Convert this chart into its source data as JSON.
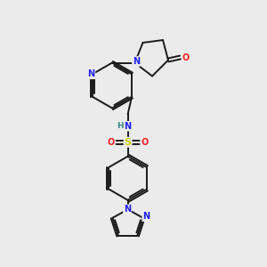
{
  "background_color": "#ebebeb",
  "bond_color": "#1a1a1a",
  "atom_colors": {
    "N": "#2020ff",
    "O": "#ff2020",
    "S": "#cccc00",
    "H": "#308080",
    "C": "#1a1a1a"
  },
  "figsize": [
    3.0,
    3.0
  ],
  "dpi": 100,
  "xlim": [
    0,
    10
  ],
  "ylim": [
    0,
    10
  ]
}
